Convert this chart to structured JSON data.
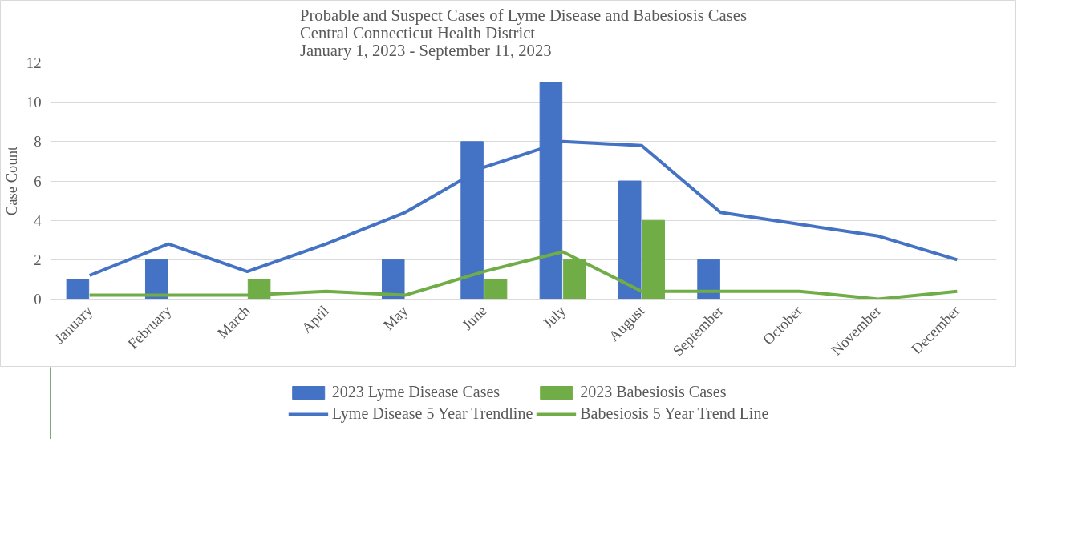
{
  "chart_data": {
    "type": "bar",
    "title": "Probable and Suspect Cases of Lyme Disease and Babesiosis Cases\nCentral Connecticut Health District\nJanuary 1, 2023 - September 11, 2023",
    "ylabel": "Case Count",
    "categories": [
      "January",
      "February",
      "March",
      "April",
      "May",
      "June",
      "July",
      "August",
      "September",
      "October",
      "November",
      "December"
    ],
    "series": [
      {
        "name": "2023 Lyme Disease Cases",
        "color": "#4472c4",
        "values": [
          1,
          2,
          0,
          0,
          2,
          8,
          11,
          6,
          2,
          0,
          0,
          0
        ]
      },
      {
        "name": "2023 Babesiosis Cases",
        "color": "#70ad47",
        "values": [
          0,
          0,
          1,
          0,
          0,
          1,
          2,
          4,
          0,
          0,
          0,
          0
        ]
      },
      {
        "name": "Lyme Disease 5 Year Trendline",
        "type": "line",
        "color": "#4472c4",
        "values": [
          1.2,
          2.8,
          1.4,
          2.8,
          4.4,
          6.7,
          8.0,
          7.8,
          4.4,
          3.8,
          3.2,
          2.0
        ]
      },
      {
        "name": "Babesiosis 5 Year Trend Line",
        "type": "line",
        "color": "#70ad47",
        "values": [
          0.2,
          0.2,
          0.2,
          0.4,
          0.2,
          1.4,
          2.4,
          0.4,
          0.4,
          0.4,
          0.0,
          0.4
        ]
      }
    ],
    "ylim": [
      0,
      12
    ],
    "yticks": [
      0,
      2,
      4,
      6,
      8,
      10,
      12
    ],
    "grid": "y",
    "legend": "bottom"
  }
}
